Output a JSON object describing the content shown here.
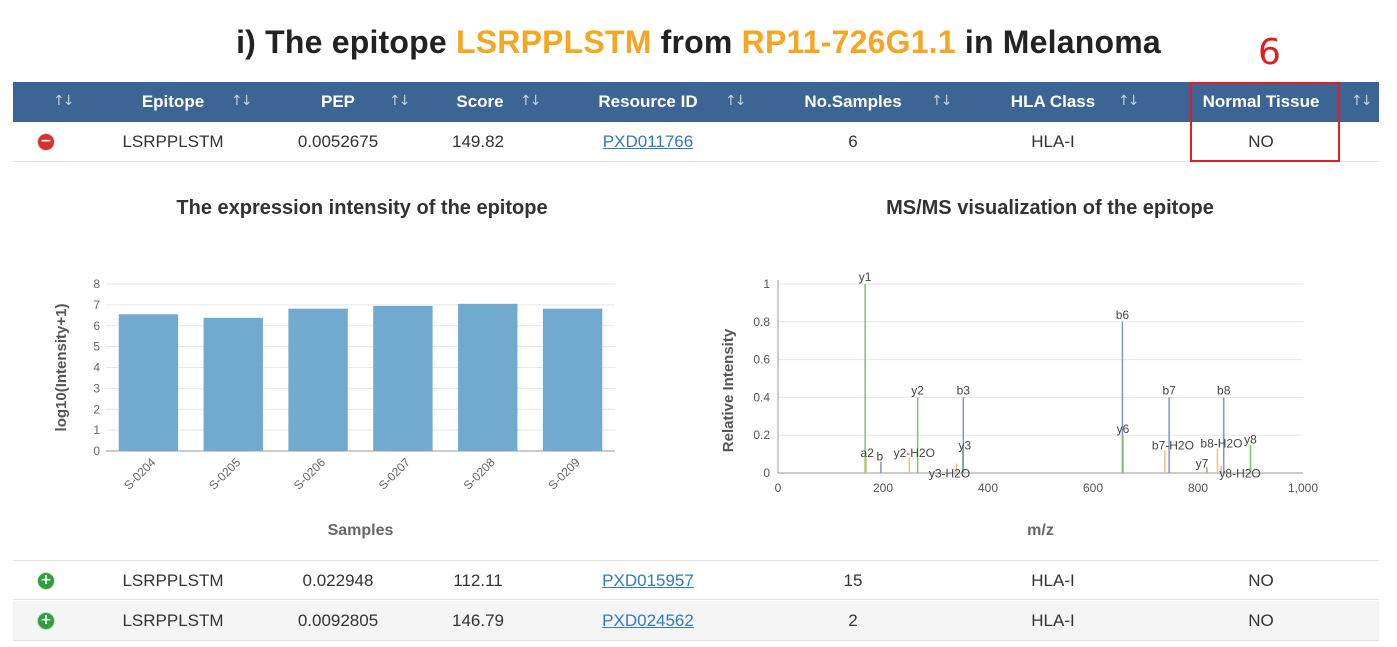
{
  "title": {
    "prefix": "i) The epitope ",
    "epitope": "LSRPPLSTM",
    "middle": " from ",
    "gene": "RP11-726G1.1",
    "suffix": " in Melanoma"
  },
  "annotation": {
    "number": "6"
  },
  "colors": {
    "header_bg": "#3c6495",
    "highlight": "#f5a623",
    "bar": "#72aacf",
    "y_ion": "#7cc46e",
    "b_ion": "#7f94d3",
    "other_ion": "#f2c27a",
    "annot_red": "#e02020"
  },
  "table": {
    "sort_glyph": "↑↓",
    "columns": [
      "Epitope",
      "PEP",
      "Score",
      "Resource ID",
      "No.Samples",
      "HLA Class",
      "Normal Tissue"
    ],
    "rows": [
      {
        "expanded": true,
        "epitope": "LSRPPLSTM",
        "pep": "0.0052675",
        "score": "149.82",
        "resource_id": "PXD011766",
        "samples": "6",
        "hla": "HLA-I",
        "normal": "NO"
      },
      {
        "expanded": false,
        "epitope": "LSRPPLSTM",
        "pep": "0.022948",
        "score": "112.11",
        "resource_id": "PXD015957",
        "samples": "15",
        "hla": "HLA-I",
        "normal": "NO"
      },
      {
        "expanded": false,
        "epitope": "LSRPPLSTM",
        "pep": "0.0092805",
        "score": "146.79",
        "resource_id": "PXD024562",
        "samples": "2",
        "hla": "HLA-I",
        "normal": "NO"
      }
    ]
  },
  "chart_data": [
    {
      "type": "bar",
      "title": "The expression intensity of the epitope",
      "xlabel": "Samples",
      "ylabel": "log10(Intensity+1)",
      "categories": [
        "S-0204",
        "S-0205",
        "S-0206",
        "S-0207",
        "S-0208",
        "S-0209"
      ],
      "values": [
        6.55,
        6.38,
        6.82,
        6.95,
        7.05,
        6.82
      ],
      "ylim": [
        0,
        8
      ],
      "yticks": [
        0,
        1,
        2,
        3,
        4,
        5,
        6,
        7,
        8
      ],
      "grid": true
    },
    {
      "type": "bar",
      "title": "MS/MS visualization of the epitope",
      "xlabel": "m/z",
      "ylabel": "Relative Intensity",
      "xlim": [
        0,
        1000
      ],
      "ylim": [
        0,
        1
      ],
      "xticks": [
        "0",
        "200",
        "400",
        "600",
        "800",
        "1,000"
      ],
      "yticks": [
        "0",
        "0.2",
        "0.4",
        "0.6",
        "0.8",
        "1"
      ],
      "grid": true,
      "peaks": [
        {
          "mz": 166,
          "intensity": 1.0,
          "label": "y1",
          "ion": "y"
        },
        {
          "mz": 168,
          "intensity": 0.08,
          "label": "a2",
          "ion": "other"
        },
        {
          "mz": 196,
          "intensity": 0.06,
          "label": "b",
          "ion": "b"
        },
        {
          "mz": 250,
          "intensity": 0.08,
          "label": "y2-H2O",
          "ion": "other"
        },
        {
          "mz": 266,
          "intensity": 0.4,
          "label": "y2",
          "ion": "y"
        },
        {
          "mz": 340,
          "intensity": 0.05,
          "label": "y3-H2O",
          "ion": "other"
        },
        {
          "mz": 352,
          "intensity": 0.12,
          "label": "y3",
          "ion": "y"
        },
        {
          "mz": 353,
          "intensity": 0.4,
          "label": "b3",
          "ion": "b"
        },
        {
          "mz": 656,
          "intensity": 0.8,
          "label": "b6",
          "ion": "b"
        },
        {
          "mz": 657,
          "intensity": 0.2,
          "label": "y6",
          "ion": "y"
        },
        {
          "mz": 737,
          "intensity": 0.12,
          "label": "b7-H2O",
          "ion": "other"
        },
        {
          "mz": 745,
          "intensity": 0.4,
          "label": "b7",
          "ion": "b"
        },
        {
          "mz": 817,
          "intensity": 0.03,
          "label": "y7",
          "ion": "y"
        },
        {
          "mz": 837,
          "intensity": 0.13,
          "label": "b8-H2O",
          "ion": "other"
        },
        {
          "mz": 844,
          "intensity": 0.04,
          "label": "y8-H2O",
          "ion": "other"
        },
        {
          "mz": 849,
          "intensity": 0.4,
          "label": "b8",
          "ion": "b"
        },
        {
          "mz": 900,
          "intensity": 0.15,
          "label": "y8",
          "ion": "y"
        }
      ]
    }
  ]
}
